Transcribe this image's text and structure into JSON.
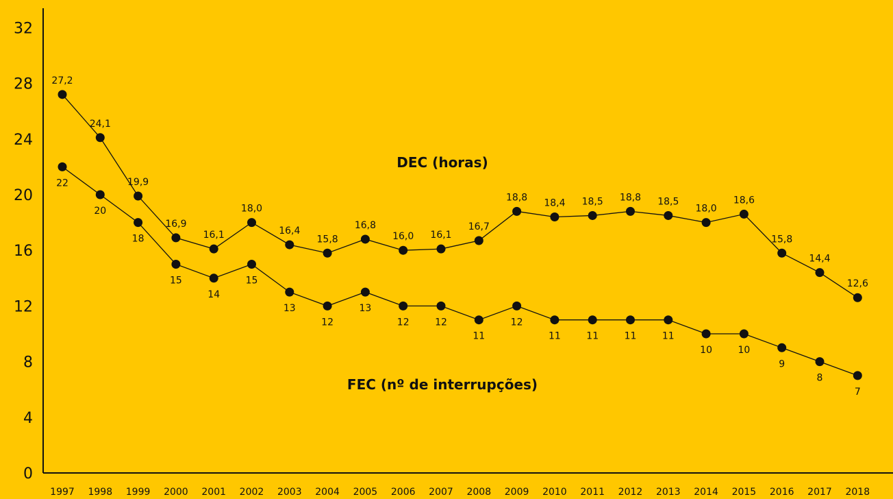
{
  "chart_data": {
    "type": "line",
    "title": "",
    "xlabel": "",
    "ylabel": "",
    "ylim": [
      0,
      32
    ],
    "yticks": [
      0,
      4,
      8,
      12,
      16,
      20,
      24,
      28,
      32
    ],
    "grid": false,
    "background": "#FFC700",
    "line_color": "#111111",
    "categories": [
      "1997",
      "1998",
      "1999",
      "2000",
      "2001",
      "2002",
      "2003",
      "2004",
      "2005",
      "2006",
      "2007",
      "2008",
      "2009",
      "2010",
      "2011",
      "2012",
      "2013",
      "2014",
      "2015",
      "2016",
      "2017",
      "2018"
    ],
    "series": [
      {
        "name": "DEC (horas)",
        "values": [
          27.2,
          24.1,
          19.9,
          16.9,
          16.1,
          18.0,
          16.4,
          15.8,
          16.8,
          16.0,
          16.1,
          16.7,
          18.8,
          18.4,
          18.5,
          18.8,
          18.5,
          18.0,
          18.6,
          15.8,
          14.4,
          12.6
        ],
        "labels": [
          "27,2",
          "24,1",
          "19,9",
          "16,9",
          "16,1",
          "18,0",
          "16,4",
          "15,8",
          "16,8",
          "16,0",
          "16,1",
          "16,7",
          "18,8",
          "18,4",
          "18,5",
          "18,8",
          "18,5",
          "18,0",
          "18,6",
          "15,8",
          "14,4",
          "12,6"
        ],
        "label_position": "above"
      },
      {
        "name": "FEC (nº de interrupções)",
        "values": [
          22,
          20,
          18,
          15,
          14,
          15,
          13,
          12,
          13,
          12,
          12,
          11,
          12,
          11,
          11,
          11,
          11,
          10,
          10,
          9,
          8,
          7
        ],
        "labels": [
          "22",
          "20",
          "18",
          "15",
          "14",
          "15",
          "13",
          "12",
          "13",
          "12",
          "12",
          "11",
          "12",
          "11",
          "11",
          "11",
          "11",
          "10",
          "10",
          "9",
          "8",
          "7"
        ],
        "label_position": "below"
      }
    ]
  }
}
